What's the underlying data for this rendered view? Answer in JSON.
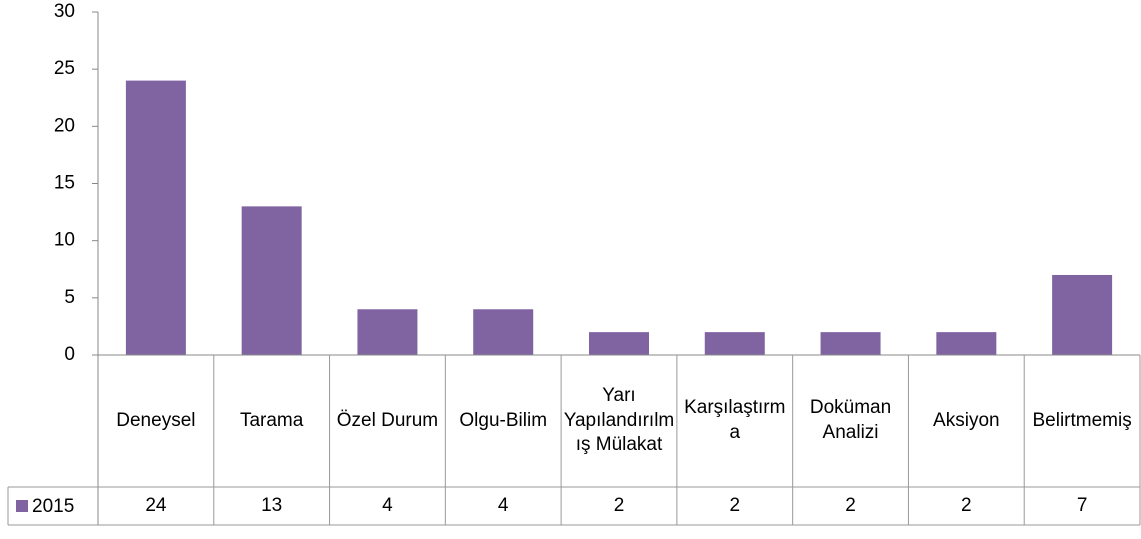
{
  "chart_data": {
    "type": "bar",
    "categories": [
      "Deneysel",
      "Tarama",
      "Özel Durum",
      "Olgu-Bilim",
      "Yarı Yapılandırılmış Mülakat",
      "Karşılaştırma",
      "Doküman Analizi",
      "Aksiyon",
      "Belirtmemiş"
    ],
    "series": [
      {
        "name": "2015",
        "color": "#8064a2",
        "values": [
          24,
          13,
          4,
          4,
          2,
          2,
          2,
          2,
          7
        ]
      }
    ],
    "ylim": [
      0,
      30
    ],
    "yticks": [
      0,
      5,
      10,
      15,
      20,
      25,
      30
    ],
    "grid": false,
    "data_table": true
  }
}
